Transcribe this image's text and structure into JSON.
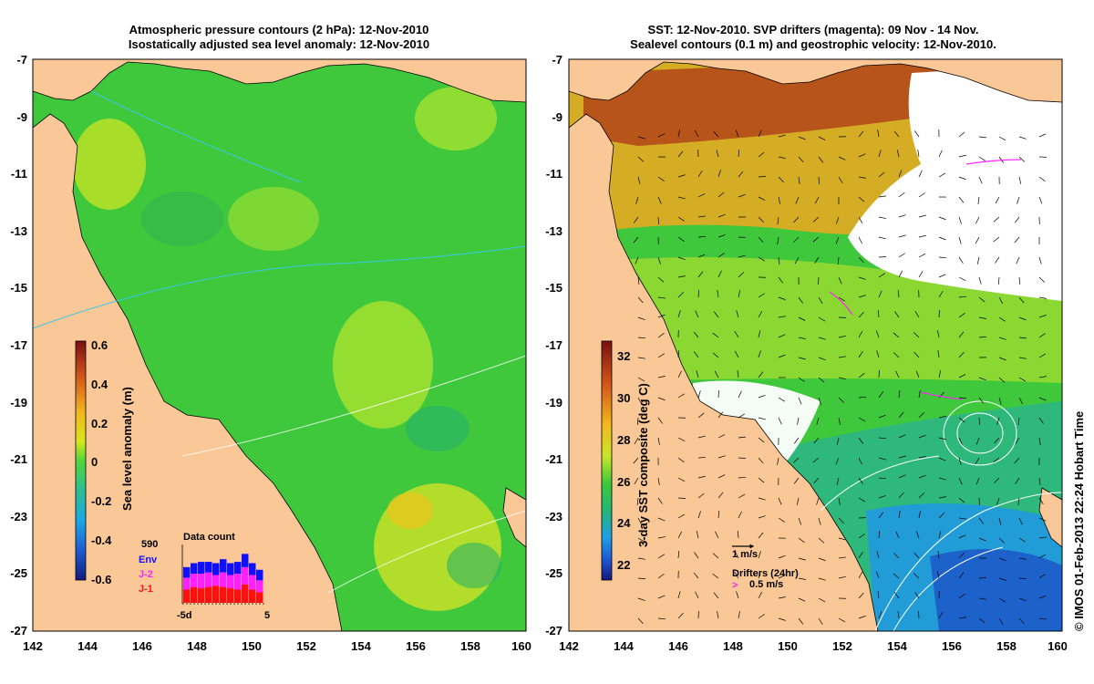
{
  "left_panel": {
    "title_line1": "Atmospheric pressure contours (2 hPa): 12-Nov-2010",
    "title_line2": "Isostatically adjusted sea level anomaly: 12-Nov-2010",
    "x_ticks": [
      "142",
      "144",
      "146",
      "148",
      "150",
      "152",
      "154",
      "156",
      "158",
      "160"
    ],
    "y_ticks": [
      "-7",
      "-9",
      "-11",
      "-13",
      "-15",
      "-17",
      "-19",
      "-21",
      "-23",
      "-25",
      "-27"
    ],
    "colorbar": {
      "label": "Sea level anomaly (m)",
      "ticks": [
        "0.6",
        "0.4",
        "0.2",
        "0",
        "-0.2",
        "-0.4",
        "-0.6"
      ]
    },
    "data_count": {
      "title": "Data count",
      "total": "590",
      "legend": [
        {
          "label": "Env",
          "color": "#1010ff"
        },
        {
          "label": "J-2",
          "color": "#ff20ff"
        },
        {
          "label": "J-1",
          "color": "#ff1010"
        }
      ],
      "x_start": "-5d",
      "x_end": "5"
    }
  },
  "right_panel": {
    "title_line1": "SST: 12-Nov-2010. SVP drifters (magenta): 09 Nov - 14 Nov.",
    "title_line2": "Sealevel contours (0.1 m) and geostrophic velocity: 12-Nov-2010.",
    "x_ticks": [
      "142",
      "144",
      "146",
      "148",
      "150",
      "152",
      "154",
      "156",
      "158",
      "160"
    ],
    "y_ticks": [
      "-7",
      "-9",
      "-11",
      "-13",
      "-15",
      "-17",
      "-19",
      "-21",
      "-23",
      "-25",
      "-27"
    ],
    "colorbar": {
      "label": "3-day SST composite (deg C)",
      "ticks": [
        "32",
        "30",
        "28",
        "26",
        "24",
        "22"
      ]
    },
    "velocity_legend": "1 m/s",
    "drifters_legend": "Drifters (24hr)",
    "drifters_speed": "0.5 m/s"
  },
  "credit": "© IMOS 01-Feb-2013 22:24 Hobart Time",
  "colors": {
    "land": "#fac896",
    "ocean_green": "#3fc83c",
    "cloud": "#ffffff"
  }
}
